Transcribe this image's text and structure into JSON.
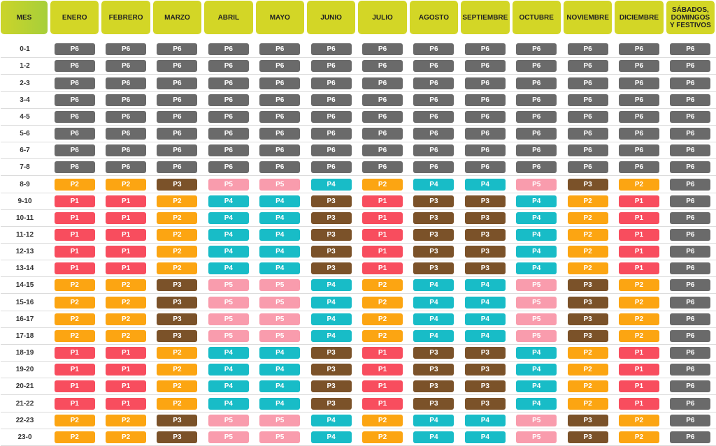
{
  "header": {
    "mes": "MES",
    "months": [
      "ENERO",
      "FEBRERO",
      "MARZO",
      "ABRIL",
      "MAYO",
      "JUNIO",
      "JULIO",
      "AGOSTO",
      "SEPTIEMBRE",
      "OCTUBRE",
      "NOVIEMBRE",
      "DICIEMBRE"
    ],
    "weekend": "SÁBADOS,\nDOMINGOS\nY FESTIVOS"
  },
  "colors": {
    "P1": "#f84d5e",
    "P2": "#fca512",
    "P3": "#7b5229",
    "P4": "#18bcc7",
    "P5": "#f99cad",
    "P6": "#6a6a6a",
    "header": "#d3d626"
  },
  "rows": [
    {
      "hour": "0-1",
      "periods": [
        "P6",
        "P6",
        "P6",
        "P6",
        "P6",
        "P6",
        "P6",
        "P6",
        "P6",
        "P6",
        "P6",
        "P6",
        "P6"
      ]
    },
    {
      "hour": "1-2",
      "periods": [
        "P6",
        "P6",
        "P6",
        "P6",
        "P6",
        "P6",
        "P6",
        "P6",
        "P6",
        "P6",
        "P6",
        "P6",
        "P6"
      ]
    },
    {
      "hour": "2-3",
      "periods": [
        "P6",
        "P6",
        "P6",
        "P6",
        "P6",
        "P6",
        "P6",
        "P6",
        "P6",
        "P6",
        "P6",
        "P6",
        "P6"
      ]
    },
    {
      "hour": "3-4",
      "periods": [
        "P6",
        "P6",
        "P6",
        "P6",
        "P6",
        "P6",
        "P6",
        "P6",
        "P6",
        "P6",
        "P6",
        "P6",
        "P6"
      ]
    },
    {
      "hour": "4-5",
      "periods": [
        "P6",
        "P6",
        "P6",
        "P6",
        "P6",
        "P6",
        "P6",
        "P6",
        "P6",
        "P6",
        "P6",
        "P6",
        "P6"
      ]
    },
    {
      "hour": "5-6",
      "periods": [
        "P6",
        "P6",
        "P6",
        "P6",
        "P6",
        "P6",
        "P6",
        "P6",
        "P6",
        "P6",
        "P6",
        "P6",
        "P6"
      ]
    },
    {
      "hour": "6-7",
      "periods": [
        "P6",
        "P6",
        "P6",
        "P6",
        "P6",
        "P6",
        "P6",
        "P6",
        "P6",
        "P6",
        "P6",
        "P6",
        "P6"
      ]
    },
    {
      "hour": "7-8",
      "periods": [
        "P6",
        "P6",
        "P6",
        "P6",
        "P6",
        "P6",
        "P6",
        "P6",
        "P6",
        "P6",
        "P6",
        "P6",
        "P6"
      ]
    },
    {
      "hour": "8-9",
      "periods": [
        "P2",
        "P2",
        "P3",
        "P5",
        "P5",
        "P4",
        "P2",
        "P4",
        "P4",
        "P5",
        "P3",
        "P2",
        "P6"
      ]
    },
    {
      "hour": "9-10",
      "periods": [
        "P1",
        "P1",
        "P2",
        "P4",
        "P4",
        "P3",
        "P1",
        "P3",
        "P3",
        "P4",
        "P2",
        "P1",
        "P6"
      ]
    },
    {
      "hour": "10-11",
      "periods": [
        "P1",
        "P1",
        "P2",
        "P4",
        "P4",
        "P3",
        "P1",
        "P3",
        "P3",
        "P4",
        "P2",
        "P1",
        "P6"
      ]
    },
    {
      "hour": "11-12",
      "periods": [
        "P1",
        "P1",
        "P2",
        "P4",
        "P4",
        "P3",
        "P1",
        "P3",
        "P3",
        "P4",
        "P2",
        "P1",
        "P6"
      ]
    },
    {
      "hour": "12-13",
      "periods": [
        "P1",
        "P1",
        "P2",
        "P4",
        "P4",
        "P3",
        "P1",
        "P3",
        "P3",
        "P4",
        "P2",
        "P1",
        "P6"
      ]
    },
    {
      "hour": "13-14",
      "periods": [
        "P1",
        "P1",
        "P2",
        "P4",
        "P4",
        "P3",
        "P1",
        "P3",
        "P3",
        "P4",
        "P2",
        "P1",
        "P6"
      ]
    },
    {
      "hour": "14-15",
      "periods": [
        "P2",
        "P2",
        "P3",
        "P5",
        "P5",
        "P4",
        "P2",
        "P4",
        "P4",
        "P5",
        "P3",
        "P2",
        "P6"
      ]
    },
    {
      "hour": "15-16",
      "periods": [
        "P2",
        "P2",
        "P3",
        "P5",
        "P5",
        "P4",
        "P2",
        "P4",
        "P4",
        "P5",
        "P3",
        "P2",
        "P6"
      ]
    },
    {
      "hour": "16-17",
      "periods": [
        "P2",
        "P2",
        "P3",
        "P5",
        "P5",
        "P4",
        "P2",
        "P4",
        "P4",
        "P5",
        "P3",
        "P2",
        "P6"
      ]
    },
    {
      "hour": "17-18",
      "periods": [
        "P2",
        "P2",
        "P3",
        "P5",
        "P5",
        "P4",
        "P2",
        "P4",
        "P4",
        "P5",
        "P3",
        "P2",
        "P6"
      ]
    },
    {
      "hour": "18-19",
      "periods": [
        "P1",
        "P1",
        "P2",
        "P4",
        "P4",
        "P3",
        "P1",
        "P3",
        "P3",
        "P4",
        "P2",
        "P1",
        "P6"
      ]
    },
    {
      "hour": "19-20",
      "periods": [
        "P1",
        "P1",
        "P2",
        "P4",
        "P4",
        "P3",
        "P1",
        "P3",
        "P3",
        "P4",
        "P2",
        "P1",
        "P6"
      ]
    },
    {
      "hour": "20-21",
      "periods": [
        "P1",
        "P1",
        "P2",
        "P4",
        "P4",
        "P3",
        "P1",
        "P3",
        "P3",
        "P4",
        "P2",
        "P1",
        "P6"
      ]
    },
    {
      "hour": "21-22",
      "periods": [
        "P1",
        "P1",
        "P2",
        "P4",
        "P4",
        "P3",
        "P1",
        "P3",
        "P3",
        "P4",
        "P2",
        "P1",
        "P6"
      ]
    },
    {
      "hour": "22-23",
      "periods": [
        "P2",
        "P2",
        "P3",
        "P5",
        "P5",
        "P4",
        "P2",
        "P4",
        "P4",
        "P5",
        "P3",
        "P2",
        "P6"
      ]
    },
    {
      "hour": "23-0",
      "periods": [
        "P2",
        "P2",
        "P3",
        "P5",
        "P5",
        "P4",
        "P2",
        "P4",
        "P4",
        "P5",
        "P3",
        "P2",
        "P6"
      ]
    }
  ]
}
